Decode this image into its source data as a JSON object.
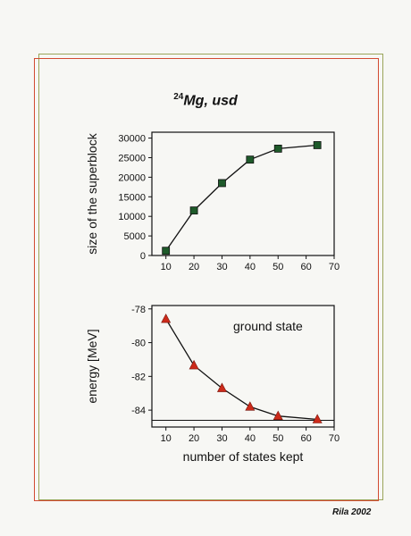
{
  "slide": {
    "title_sup": "24",
    "title_main": "Mg, usd",
    "footer": "Rila 2002",
    "colors": {
      "frame_outer": "#d24a32",
      "frame_inner": "#9aa55a",
      "square_marker": "#1e5a2a",
      "triangle_marker": "#cc2a1a"
    }
  },
  "chart_data": [
    {
      "type": "line",
      "x": [
        10,
        20,
        30,
        40,
        50,
        64
      ],
      "values": [
        1200,
        11500,
        18500,
        24500,
        27300,
        28200
      ],
      "ylabel": "size of the superblock",
      "xlabel": "",
      "xlim": [
        5,
        70
      ],
      "ylim": [
        0,
        31500
      ],
      "x_ticks": [
        10,
        20,
        30,
        40,
        50,
        60,
        70
      ],
      "y_ticks": [
        0,
        5000,
        10000,
        15000,
        20000,
        25000,
        30000
      ],
      "marker": "square",
      "grid": false
    },
    {
      "type": "line",
      "x": [
        10,
        20,
        30,
        40,
        50,
        64
      ],
      "values": [
        -78.6,
        -81.35,
        -82.7,
        -83.8,
        -84.35,
        -84.55
      ],
      "ylabel": "energy [MeV]",
      "xlabel": "number of states kept",
      "xlim": [
        5,
        70
      ],
      "ylim": [
        -85.0,
        -77.8
      ],
      "x_ticks": [
        10,
        20,
        30,
        40,
        50,
        60,
        70
      ],
      "y_ticks": [
        -78,
        -80,
        -82,
        -84
      ],
      "reference_line": -84.6,
      "annotation": "ground state",
      "marker": "triangle",
      "grid": false
    }
  ]
}
